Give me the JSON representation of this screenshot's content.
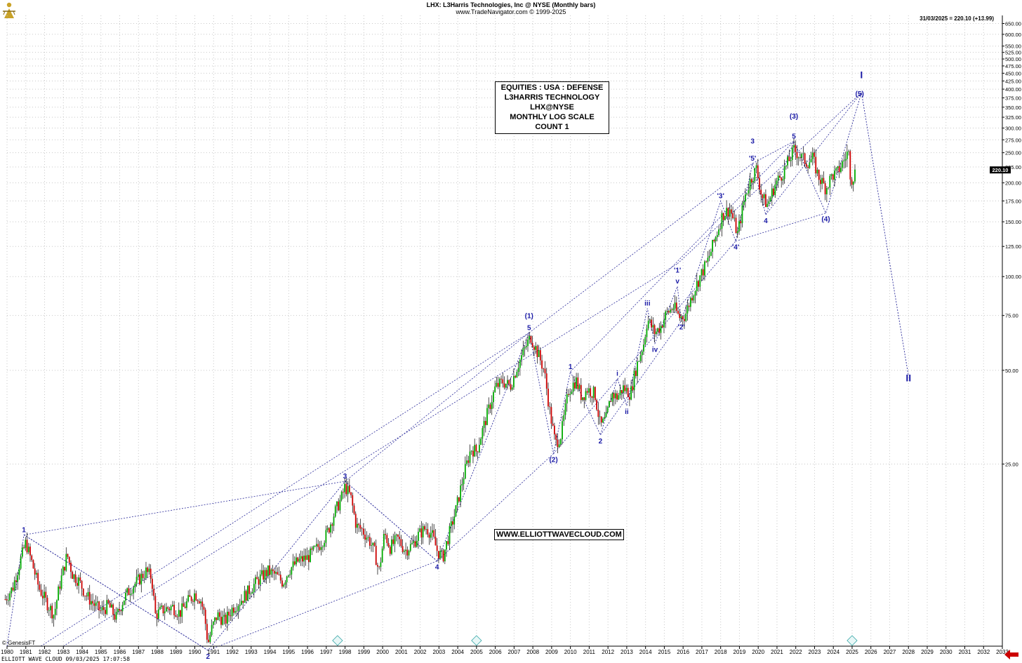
{
  "header": {
    "title": "LHX:  L3Harris Technologies, Inc @ NYSE  (Monthly bars)",
    "subtitle": "www.TradeNavigator.com © 1999-2025",
    "price_readout": "31/03/2025 = 220.10 (+13.99)",
    "last_price_tag": "220.10"
  },
  "info_box": {
    "lines": [
      "EQUITIES : USA : DEFENSE",
      "L3HARRIS TECHNOLOGY",
      "LHX@NYSE",
      "MONTHLY LOG SCALE",
      "COUNT 1"
    ]
  },
  "website_box": "WWW.ELLIOTTWAVECLOUD.COM",
  "footer": {
    "left_caption": "ELLIOTT WAVE CLOUD   09/03/2025 17:07:58",
    "copyright": "© GenesisFT"
  },
  "colors": {
    "wave_label": "#1a1aa6",
    "guide_line": "#2a2a9a",
    "bar_up": "#00aa00",
    "bar_down": "#cc0000",
    "grid": "#c8c8c8",
    "price_tag_bg": "#000000",
    "scroll_arrow": "#cc0000"
  },
  "chart_data": {
    "type": "bar",
    "scale": "log",
    "frequency": "monthly",
    "ylim": [
      6.5,
      690
    ],
    "y_ticks": [
      25,
      50,
      75,
      100,
      125,
      150,
      175,
      200,
      225,
      250,
      275,
      300,
      325,
      350,
      375,
      400,
      425,
      450,
      475,
      500,
      525,
      550,
      600,
      650
    ],
    "x_ticks": [
      "1980",
      "1981",
      "1982",
      "1983",
      "1984",
      "1985",
      "1986",
      "1987",
      "1988",
      "1989",
      "1990",
      "1991",
      "1992",
      "1993",
      "1994",
      "1995",
      "1996",
      "1997",
      "1998",
      "1999",
      "2000",
      "2001",
      "2002",
      "2003",
      "2004",
      "2005",
      "2006",
      "2007",
      "2008",
      "2009",
      "2010",
      "2011",
      "2012",
      "2013",
      "2014",
      "2015",
      "2016",
      "2017",
      "2018",
      "2019",
      "2020",
      "2021",
      "2022",
      "2023",
      "2024",
      "2025",
      "2026",
      "2027",
      "2028",
      "2029",
      "2030",
      "2031",
      "2032",
      "2033"
    ],
    "xlim": [
      1980,
      2033
    ],
    "grid": true,
    "price_path": [
      [
        1979.9,
        9.2
      ],
      [
        1980.3,
        10.0
      ],
      [
        1980.7,
        12.2
      ],
      [
        1981.0,
        14.0
      ],
      [
        1981.3,
        12.2
      ],
      [
        1981.7,
        10.0
      ],
      [
        1982.1,
        9.0
      ],
      [
        1982.5,
        8.2
      ],
      [
        1982.8,
        10.2
      ],
      [
        1983.2,
        12.8
      ],
      [
        1983.5,
        11.0
      ],
      [
        1983.8,
        10.6
      ],
      [
        1984.2,
        9.5
      ],
      [
        1984.6,
        8.9
      ],
      [
        1985.0,
        8.4
      ],
      [
        1985.4,
        8.8
      ],
      [
        1985.8,
        8.0
      ],
      [
        1986.2,
        9.2
      ],
      [
        1986.6,
        10.0
      ],
      [
        1987.0,
        10.6
      ],
      [
        1987.4,
        11.3
      ],
      [
        1987.7,
        10.8
      ],
      [
        1987.9,
        8.2
      ],
      [
        1988.3,
        8.5
      ],
      [
        1988.8,
        8.7
      ],
      [
        1989.2,
        8.3
      ],
      [
        1989.6,
        9.0
      ],
      [
        1990.0,
        9.6
      ],
      [
        1990.3,
        9.2
      ],
      [
        1990.5,
        8.3
      ],
      [
        1990.7,
        6.6
      ],
      [
        1990.9,
        7.4
      ],
      [
        1991.2,
        8.2
      ],
      [
        1991.6,
        7.8
      ],
      [
        1992.0,
        8.6
      ],
      [
        1992.5,
        9.2
      ],
      [
        1993.0,
        10.0
      ],
      [
        1993.5,
        10.8
      ],
      [
        1993.9,
        11.3
      ],
      [
        1994.3,
        11.0
      ],
      [
        1994.7,
        10.4
      ],
      [
        1995.0,
        11.4
      ],
      [
        1995.5,
        12.2
      ],
      [
        1996.0,
        12.5
      ],
      [
        1996.5,
        13.4
      ],
      [
        1997.0,
        14.8
      ],
      [
        1997.4,
        17.2
      ],
      [
        1997.8,
        19.4
      ],
      [
        1998.0,
        21.2
      ],
      [
        1998.3,
        19.6
      ],
      [
        1998.6,
        15.8
      ],
      [
        1998.9,
        15.4
      ],
      [
        1999.3,
        14.2
      ],
      [
        1999.6,
        12.9
      ],
      [
        1999.8,
        11.2
      ],
      [
        2000.1,
        15.0
      ],
      [
        2000.4,
        13.5
      ],
      [
        2000.8,
        14.4
      ],
      [
        2001.2,
        13.2
      ],
      [
        2001.6,
        13.8
      ],
      [
        2001.9,
        14.8
      ],
      [
        2002.3,
        15.6
      ],
      [
        2002.6,
        15.0
      ],
      [
        2002.9,
        13.2
      ],
      [
        2003.2,
        12.5
      ],
      [
        2003.5,
        14.6
      ],
      [
        2003.9,
        17.8
      ],
      [
        2004.3,
        22.8
      ],
      [
        2004.7,
        28.0
      ],
      [
        2005.0,
        27.5
      ],
      [
        2005.5,
        35.0
      ],
      [
        2006.0,
        44.0
      ],
      [
        2006.4,
        46.0
      ],
      [
        2006.8,
        44.5
      ],
      [
        2007.2,
        52.0
      ],
      [
        2007.7,
        61.0
      ],
      [
        2007.9,
        64.0
      ],
      [
        2008.3,
        56.0
      ],
      [
        2008.6,
        50.0
      ],
      [
        2008.9,
        37.0
      ],
      [
        2009.2,
        29.0
      ],
      [
        2009.5,
        31.0
      ],
      [
        2009.9,
        43.0
      ],
      [
        2010.3,
        46.5
      ],
      [
        2010.6,
        41.0
      ],
      [
        2010.9,
        43.5
      ],
      [
        2011.3,
        42.0
      ],
      [
        2011.6,
        33.0
      ],
      [
        2011.9,
        35.0
      ],
      [
        2012.2,
        42.0
      ],
      [
        2012.5,
        41.0
      ],
      [
        2012.8,
        44.0
      ],
      [
        2013.2,
        42.0
      ],
      [
        2013.5,
        51.0
      ],
      [
        2013.9,
        61.0
      ],
      [
        2014.1,
        73.0
      ],
      [
        2014.5,
        66.0
      ],
      [
        2014.8,
        69.0
      ],
      [
        2015.1,
        76.0
      ],
      [
        2015.5,
        80.0
      ],
      [
        2015.8,
        74.0
      ],
      [
        2016.1,
        75.0
      ],
      [
        2016.5,
        88.0
      ],
      [
        2016.9,
        100.0
      ],
      [
        2017.3,
        112.0
      ],
      [
        2017.7,
        132.0
      ],
      [
        2018.1,
        158.0
      ],
      [
        2018.5,
        165.0
      ],
      [
        2018.9,
        137.0
      ],
      [
        2019.3,
        182.0
      ],
      [
        2019.6,
        205.0
      ],
      [
        2019.9,
        222.0
      ],
      [
        2020.2,
        180.0
      ],
      [
        2020.5,
        170.0
      ],
      [
        2020.9,
        198.0
      ],
      [
        2021.3,
        215.0
      ],
      [
        2021.7,
        240.0
      ],
      [
        2021.9,
        255.0
      ],
      [
        2022.2,
        245.0
      ],
      [
        2022.6,
        232.0
      ],
      [
        2022.9,
        240.0
      ],
      [
        2023.2,
        210.0
      ],
      [
        2023.6,
        192.0
      ],
      [
        2023.9,
        210.0
      ],
      [
        2024.2,
        215.0
      ],
      [
        2024.6,
        238.0
      ],
      [
        2024.8,
        255.0
      ],
      [
        2024.9,
        215.0
      ],
      [
        2025.0,
        205.0
      ],
      [
        2025.2,
        220.1
      ]
    ],
    "wave_labels": [
      {
        "text": "1",
        "x": 1980.9,
        "y": 14.8,
        "pos": "above"
      },
      {
        "text": "2",
        "x": 1990.7,
        "y": 6.3,
        "pos": "below"
      },
      {
        "text": "3",
        "x": 1998.0,
        "y": 22.0,
        "pos": "above"
      },
      {
        "text": "4",
        "x": 2002.9,
        "y": 12.2,
        "pos": "below"
      },
      {
        "text": "5",
        "x": 2007.8,
        "y": 66.0,
        "pos": "above"
      },
      {
        "text": "(1)",
        "x": 2007.8,
        "y": 72.0,
        "pos": "above"
      },
      {
        "text": "(2)",
        "x": 2009.1,
        "y": 27.0,
        "pos": "below"
      },
      {
        "text": "1",
        "x": 2010.0,
        "y": 49.5,
        "pos": "above"
      },
      {
        "text": "2",
        "x": 2011.6,
        "y": 31.0,
        "pos": "below"
      },
      {
        "text": "i",
        "x": 2012.5,
        "y": 47.0,
        "pos": "above"
      },
      {
        "text": "ii",
        "x": 2013.0,
        "y": 38.5,
        "pos": "below"
      },
      {
        "text": "iii",
        "x": 2014.1,
        "y": 79.0,
        "pos": "above"
      },
      {
        "text": "iv",
        "x": 2014.5,
        "y": 61.0,
        "pos": "below"
      },
      {
        "text": "v",
        "x": 2015.7,
        "y": 93.0,
        "pos": "above"
      },
      {
        "text": "'1'",
        "x": 2015.7,
        "y": 101.0,
        "pos": "above"
      },
      {
        "text": "'2'",
        "x": 2015.9,
        "y": 72.0,
        "pos": "below"
      },
      {
        "text": "'3'",
        "x": 2018.0,
        "y": 175.0,
        "pos": "above"
      },
      {
        "text": "'4'",
        "x": 2018.8,
        "y": 130.0,
        "pos": "below"
      },
      {
        "text": "'5'",
        "x": 2019.7,
        "y": 231.0,
        "pos": "above"
      },
      {
        "text": "3",
        "x": 2019.7,
        "y": 262.0,
        "pos": "above"
      },
      {
        "text": "4",
        "x": 2020.4,
        "y": 158.0,
        "pos": "below"
      },
      {
        "text": "5",
        "x": 2021.9,
        "y": 272.0,
        "pos": "above"
      },
      {
        "text": "(3)",
        "x": 2021.9,
        "y": 315.0,
        "pos": "above"
      },
      {
        "text": "(4)",
        "x": 2023.6,
        "y": 160.0,
        "pos": "below"
      },
      {
        "text": "(5)",
        "x": 2025.4,
        "y": 372.0,
        "pos": "above"
      },
      {
        "text": "I",
        "x": 2025.5,
        "y": 425.0,
        "pos": "above",
        "size": "large"
      },
      {
        "text": "II",
        "x": 2028.0,
        "y": 49.0,
        "pos": "below",
        "size": "large"
      }
    ],
    "wave_path": [
      [
        1980.0,
        6.5
      ],
      [
        1980.9,
        14.8
      ],
      [
        1990.7,
        6.3
      ],
      [
        1998.0,
        22.0
      ],
      [
        2002.9,
        12.2
      ],
      [
        2007.8,
        66.0
      ],
      [
        2009.1,
        27.0
      ],
      [
        2010.0,
        49.5
      ],
      [
        2011.6,
        31.0
      ],
      [
        2012.5,
        47.0
      ],
      [
        2013.0,
        38.5
      ],
      [
        2014.1,
        79.0
      ],
      [
        2014.5,
        61.0
      ],
      [
        2015.7,
        93.0
      ],
      [
        2015.9,
        72.0
      ],
      [
        2018.0,
        175.0
      ],
      [
        2018.8,
        130.0
      ],
      [
        2019.7,
        231.0
      ],
      [
        2020.4,
        158.0
      ],
      [
        2021.9,
        272.0
      ],
      [
        2023.6,
        160.0
      ],
      [
        2025.5,
        390.0
      ],
      [
        2028.0,
        48.0
      ]
    ],
    "channel_lines": [
      [
        [
          1980.9,
          14.8
        ],
        [
          1998.0,
          22.0
        ]
      ],
      [
        [
          1980.9,
          14.8
        ],
        [
          1990.7,
          6.3
        ]
      ],
      [
        [
          1990.7,
          6.3
        ],
        [
          2002.9,
          12.2
        ]
      ],
      [
        [
          1981.8,
          6.5
        ],
        [
          2007.8,
          66.0
        ]
      ],
      [
        [
          1983.0,
          6.5
        ],
        [
          2015.7,
          110.0
        ]
      ],
      [
        [
          1998.0,
          22.0
        ],
        [
          2007.8,
          66.0
        ]
      ],
      [
        [
          1998.0,
          22.0
        ],
        [
          2002.9,
          12.2
        ]
      ],
      [
        [
          2002.9,
          12.2
        ],
        [
          2009.1,
          27.0
        ]
      ],
      [
        [
          2009.1,
          27.0
        ],
        [
          2018.8,
          130.0
        ]
      ],
      [
        [
          2007.8,
          66.0
        ],
        [
          2019.7,
          231.0
        ]
      ],
      [
        [
          2010.0,
          49.5
        ],
        [
          2021.9,
          272.0
        ]
      ],
      [
        [
          2011.6,
          31.0
        ],
        [
          2015.9,
          72.0
        ]
      ],
      [
        [
          2015.7,
          110.0
        ],
        [
          2025.5,
          390.0
        ]
      ],
      [
        [
          2020.4,
          158.0
        ],
        [
          2025.5,
          390.0
        ]
      ],
      [
        [
          2018.8,
          130.0
        ],
        [
          2023.6,
          160.0
        ]
      ],
      [
        [
          2019.7,
          231.0
        ],
        [
          2021.9,
          272.0
        ]
      ]
    ],
    "markers_x": [
      1997.6,
      2005.0,
      2025.0
    ]
  }
}
